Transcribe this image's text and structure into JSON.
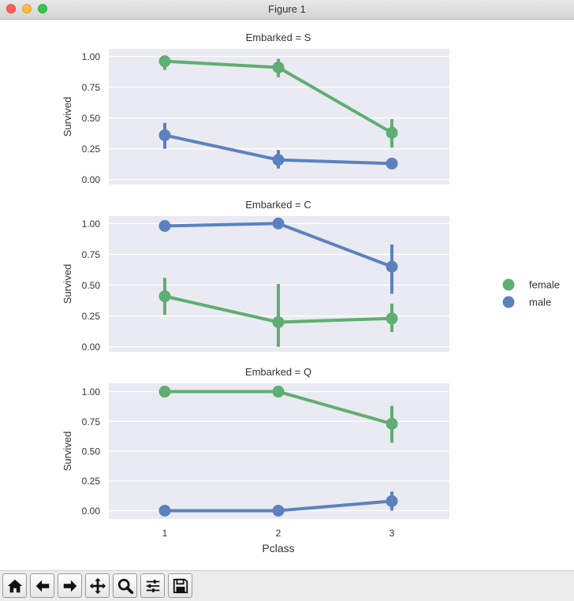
{
  "window": {
    "title": "Figure 1"
  },
  "colors": {
    "female": "#5fae72",
    "male": "#5b82bf",
    "panel_bg": "#eaeaf2"
  },
  "legend": {
    "entries": [
      {
        "label": "female",
        "color": "#5fae72"
      },
      {
        "label": "male",
        "color": "#5b82bf"
      }
    ]
  },
  "toolbar": {
    "icons": [
      "home-icon",
      "back-arrow-icon",
      "forward-arrow-icon",
      "pan-icon",
      "zoom-icon",
      "configure-subplots-icon",
      "save-icon"
    ]
  },
  "chart_data": [
    {
      "type": "line",
      "title": "Embarked = S",
      "xlabel": "",
      "ylabel": "Survived",
      "categories": [
        "1",
        "2",
        "3"
      ],
      "yticks": [
        "0.00",
        "0.25",
        "0.50",
        "0.75",
        "1.00"
      ],
      "ylim": [
        -0.04,
        1.06
      ],
      "series": [
        {
          "name": "female",
          "values": [
            0.96,
            0.91,
            0.38
          ],
          "ci": [
            [
              0.89,
              1.0
            ],
            [
              0.83,
              0.98
            ],
            [
              0.26,
              0.49
            ]
          ]
        },
        {
          "name": "male",
          "values": [
            0.36,
            0.16,
            0.13
          ],
          "ci": [
            [
              0.25,
              0.46
            ],
            [
              0.09,
              0.24
            ],
            [
              0.1,
              0.16
            ]
          ]
        }
      ]
    },
    {
      "type": "line",
      "title": "Embarked = C",
      "xlabel": "",
      "ylabel": "Survived",
      "categories": [
        "1",
        "2",
        "3"
      ],
      "yticks": [
        "0.00",
        "0.25",
        "0.50",
        "0.75",
        "1.00"
      ],
      "ylim": [
        -0.04,
        1.06
      ],
      "series": [
        {
          "name": "female",
          "values": [
            0.41,
            0.2,
            0.23
          ],
          "ci": [
            [
              0.26,
              0.56
            ],
            [
              0.0,
              0.51
            ],
            [
              0.12,
              0.35
            ]
          ]
        },
        {
          "name": "male",
          "values": [
            0.98,
            1.0,
            0.65
          ],
          "ci": [
            [
              0.94,
              1.0
            ],
            [
              1.0,
              1.0
            ],
            [
              0.43,
              0.83
            ]
          ]
        }
      ]
    },
    {
      "type": "line",
      "title": "Embarked = Q",
      "xlabel": "Pclass",
      "ylabel": "Survived",
      "categories": [
        "1",
        "2",
        "3"
      ],
      "yticks": [
        "0.00",
        "0.25",
        "0.50",
        "0.75",
        "1.00"
      ],
      "ylim": [
        -0.07,
        1.07
      ],
      "series": [
        {
          "name": "female",
          "values": [
            1.0,
            1.0,
            0.73
          ],
          "ci": [
            [
              1.0,
              1.0
            ],
            [
              1.0,
              1.0
            ],
            [
              0.57,
              0.88
            ]
          ]
        },
        {
          "name": "male",
          "values": [
            0.0,
            0.0,
            0.08
          ],
          "ci": [
            [
              0.0,
              0.0
            ],
            [
              0.0,
              0.0
            ],
            [
              0.0,
              0.16
            ]
          ]
        }
      ]
    }
  ]
}
